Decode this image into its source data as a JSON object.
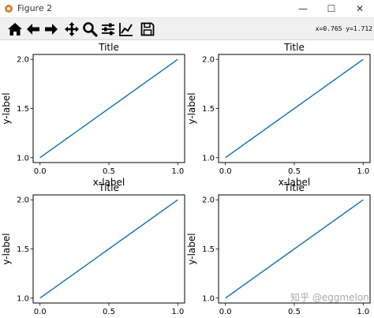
{
  "window": {
    "title": "Figure 2",
    "minimize_glyph": "—",
    "maximize_glyph": "☐",
    "close_glyph": "✕"
  },
  "toolbar": {
    "items": [
      {
        "name": "home-icon"
      },
      {
        "name": "back-icon"
      },
      {
        "name": "forward-icon"
      },
      {
        "name": "pan-icon"
      },
      {
        "name": "zoom-icon"
      },
      {
        "name": "subplots-config-icon"
      },
      {
        "name": "edit-curves-icon"
      },
      {
        "name": "save-icon"
      }
    ],
    "coords": "x=0.765  y=1.712"
  },
  "chart_data": [
    {
      "type": "line",
      "title": "Title",
      "xlabel": "x-label",
      "ylabel": "y-label",
      "x": [
        0,
        1
      ],
      "series": [
        {
          "values": [
            1,
            2
          ],
          "color": "#1f77b4"
        }
      ],
      "xlim": [
        -0.05,
        1.05
      ],
      "ylim": [
        0.95,
        2.05
      ],
      "xticks": [
        "0.0",
        "0.5",
        "1.0"
      ],
      "yticks": [
        "1.0",
        "1.5",
        "2.0"
      ],
      "grid": false
    },
    {
      "type": "line",
      "title": "Title",
      "xlabel": "x-label",
      "ylabel": "y-label",
      "x": [
        0,
        1
      ],
      "series": [
        {
          "values": [
            1,
            2
          ],
          "color": "#1f77b4"
        }
      ],
      "xlim": [
        -0.05,
        1.05
      ],
      "ylim": [
        0.95,
        2.05
      ],
      "xticks": [
        "0.0",
        "0.5",
        "1.0"
      ],
      "yticks": [
        "1.0",
        "1.5",
        "2.0"
      ],
      "grid": false
    },
    {
      "type": "line",
      "title": "Title",
      "xlabel": "x-label",
      "ylabel": "y-label",
      "x": [
        0,
        1
      ],
      "series": [
        {
          "values": [
            1,
            2
          ],
          "color": "#1f77b4"
        }
      ],
      "xlim": [
        -0.05,
        1.05
      ],
      "ylim": [
        0.95,
        2.05
      ],
      "xticks": [
        "0.0",
        "0.5",
        "1.0"
      ],
      "yticks": [
        "1.0",
        "1.5",
        "2.0"
      ],
      "grid": false
    },
    {
      "type": "line",
      "title": "Title",
      "xlabel": "x-label",
      "ylabel": "y-label",
      "x": [
        0,
        1
      ],
      "series": [
        {
          "values": [
            1,
            2
          ],
          "color": "#1f77b4"
        }
      ],
      "xlim": [
        -0.05,
        1.05
      ],
      "ylim": [
        0.95,
        2.05
      ],
      "xticks": [
        "0.0",
        "0.5",
        "1.0"
      ],
      "yticks": [
        "1.0",
        "1.5",
        "2.0"
      ],
      "grid": false
    }
  ],
  "watermark": "知乎 @eggmelon"
}
